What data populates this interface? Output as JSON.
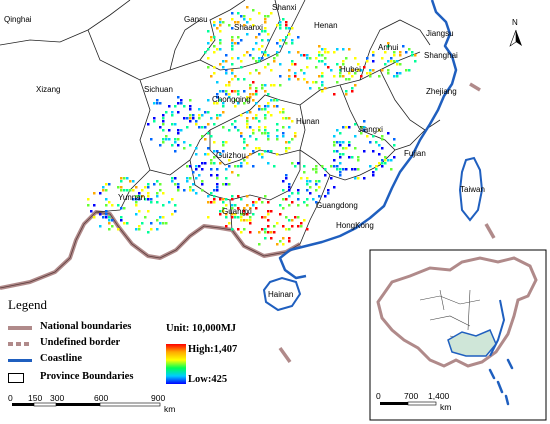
{
  "provinces": [
    {
      "id": "qinghai",
      "name": "Qinghai"
    },
    {
      "id": "gansu",
      "name": "Gansu"
    },
    {
      "id": "shanxi",
      "name": "Shanxi"
    },
    {
      "id": "henan",
      "name": "Henan"
    },
    {
      "id": "jiangsu",
      "name": "Jiangsu"
    },
    {
      "id": "shanghai",
      "name": "Shanghai"
    },
    {
      "id": "xizang",
      "name": "Xizang"
    },
    {
      "id": "sichuan",
      "name": "Sichuan"
    },
    {
      "id": "shaanxi",
      "name": "Shaanxi"
    },
    {
      "id": "hubei",
      "name": "Hubei"
    },
    {
      "id": "anhui",
      "name": "Anhui"
    },
    {
      "id": "zhejiang",
      "name": "Zhejiang"
    },
    {
      "id": "chongqing",
      "name": "Chongqing"
    },
    {
      "id": "hunan",
      "name": "Hunan"
    },
    {
      "id": "jiangxi",
      "name": "Jiangxi"
    },
    {
      "id": "guizhou",
      "name": "Guizhou"
    },
    {
      "id": "fujian",
      "name": "Fujian"
    },
    {
      "id": "taiwan",
      "name": "Taiwan"
    },
    {
      "id": "yunnan",
      "name": "Yunnan"
    },
    {
      "id": "guangxi",
      "name": "Guangxi"
    },
    {
      "id": "guangdong",
      "name": "Guangdong"
    },
    {
      "id": "hongkong",
      "name": "HongKong"
    },
    {
      "id": "hainan",
      "name": "Hainan"
    }
  ],
  "north_arrow": {
    "label": "N"
  },
  "legend": {
    "title": "Legend",
    "items": [
      {
        "label": "National boundaries",
        "color": "#b08a8a"
      },
      {
        "label": "Undefined border",
        "color": "#b08a8a"
      },
      {
        "label": "Coastline",
        "color": "#1f5fbf"
      },
      {
        "label": "Province Boundaries",
        "color": "#000000"
      }
    ],
    "unit": "Unit: 10,000MJ",
    "high_label": "High:1,407",
    "low_label": "Low:425",
    "ramp_colors": [
      "#ff0000",
      "#ffaa00",
      "#ffff00",
      "#00ff55",
      "#00ccff",
      "#0000ff"
    ]
  },
  "scale_main": {
    "ticks": [
      "0",
      "150",
      "300",
      "600",
      "900"
    ],
    "unit": "km"
  },
  "scale_inset": {
    "ticks": [
      "0",
      "700",
      "1,400"
    ],
    "unit": "km"
  }
}
